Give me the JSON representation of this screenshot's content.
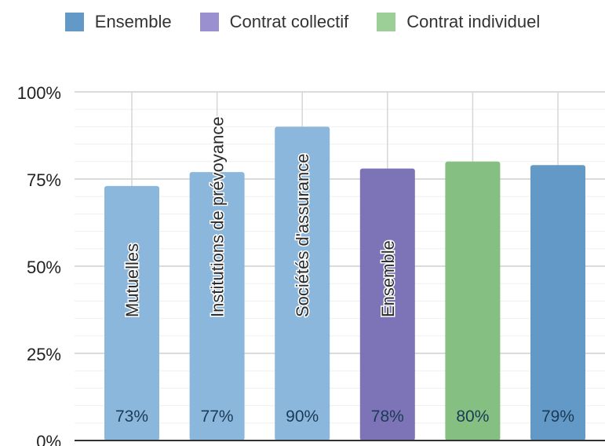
{
  "legend": [
    {
      "label": "Ensemble",
      "color": "#6399c6"
    },
    {
      "label": "Contrat collectif",
      "color": "#9a8fcf"
    },
    {
      "label": "Contrat individuel",
      "color": "#9ccf97"
    }
  ],
  "chart_data": {
    "type": "bar",
    "ylim": [
      0,
      100
    ],
    "yticks": [
      "0%",
      "25%",
      "50%",
      "75%",
      "100%"
    ],
    "grid": true,
    "legend_position": "top",
    "bars": [
      {
        "value": 73,
        "data_label": "73%",
        "category_label": "Mutuelles",
        "color": "#8cb7dc"
      },
      {
        "value": 77,
        "data_label": "77%",
        "category_label": "Institutions de prévoyance",
        "color": "#8cb7dc"
      },
      {
        "value": 90,
        "data_label": "90%",
        "category_label": "Sociétés d'assurance",
        "color": "#8cb7dc"
      },
      {
        "value": 78,
        "data_label": "78%",
        "category_label": "Ensemble",
        "color": "#7d74b8"
      },
      {
        "value": 80,
        "data_label": "80%",
        "category_label": "",
        "color": "#85bf82"
      },
      {
        "value": 79,
        "data_label": "79%",
        "category_label": "",
        "color": "#6399c6"
      }
    ]
  }
}
